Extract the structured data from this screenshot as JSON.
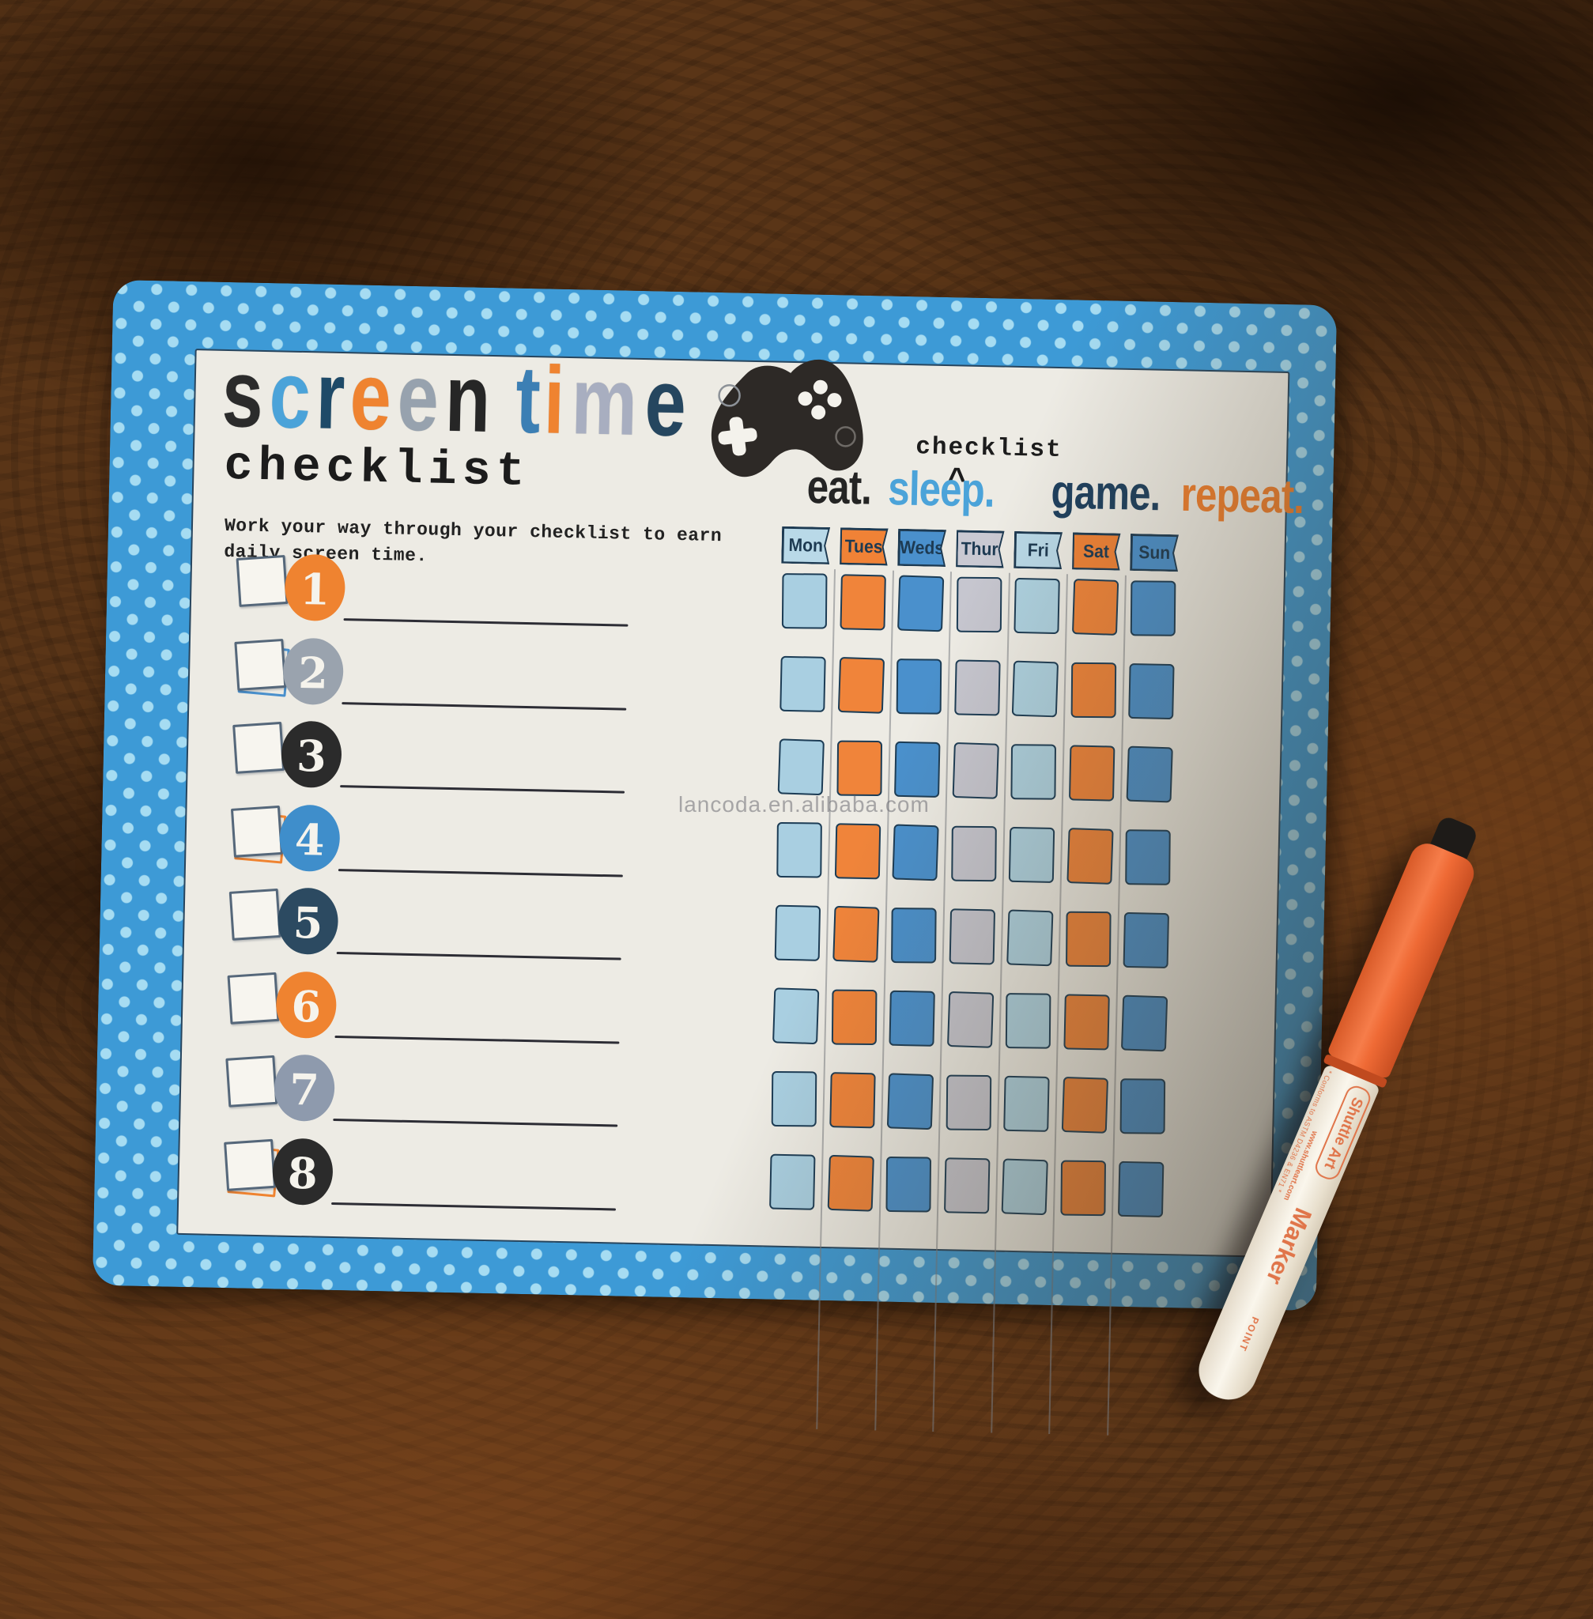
{
  "header": {
    "title_letters": [
      {
        "ch": "s",
        "color": "#2b2b2b"
      },
      {
        "ch": "c",
        "color": "#4ba3d9"
      },
      {
        "ch": "r",
        "color": "#1e4a68"
      },
      {
        "ch": "e",
        "color": "#ef8330"
      },
      {
        "ch": "e",
        "color": "#97a2ae"
      },
      {
        "ch": "n",
        "color": "#262626"
      },
      {
        "ch": " ",
        "color": ""
      },
      {
        "ch": "t",
        "color": "#3c7fb4"
      },
      {
        "ch": "i",
        "color": "#ef8330"
      },
      {
        "ch": "m",
        "color": "#a8aec0"
      },
      {
        "ch": "e",
        "color": "#25465f"
      }
    ],
    "subtitle": "checklist",
    "description_line1": "Work your way through your checklist to earn",
    "description_line2": "daily screen time."
  },
  "tagline": {
    "insert_word": "checklist",
    "caret": "^",
    "words": [
      {
        "text": "eat.",
        "color": "#242424"
      },
      {
        "text": "sleep.",
        "color": "#4ba3d9"
      },
      {
        "text": "game.",
        "color": "#1d3f5e"
      },
      {
        "text": "repeat.",
        "color": "#ef7f2e"
      }
    ]
  },
  "week": {
    "days": [
      {
        "label": "Mon",
        "color": "#b9d9e8"
      },
      {
        "label": "Tues",
        "color": "#f08236"
      },
      {
        "label": "Weds",
        "color": "#4a90cc"
      },
      {
        "label": "Thur",
        "color": "#c9c9d2"
      },
      {
        "label": "Fri",
        "color": "#b9d9e8"
      },
      {
        "label": "Sat",
        "color": "#f08236"
      },
      {
        "label": "Sun",
        "color": "#4a90cc"
      }
    ],
    "grid_rows": 8,
    "cell_colors": [
      "#a9cfe1",
      "#f0843a",
      "#4a90cc",
      "#c6c6cf",
      "#aed2e1",
      "#f0843a",
      "#4a90cc"
    ]
  },
  "checklist": {
    "rows": [
      {
        "num": "1",
        "circle": "#ef8330",
        "accent": ""
      },
      {
        "num": "2",
        "circle": "#9aa3ae",
        "accent": "#4a90cc"
      },
      {
        "num": "3",
        "circle": "#2b2b2b",
        "accent": ""
      },
      {
        "num": "4",
        "circle": "#3f8ecb",
        "accent": "#ef8330"
      },
      {
        "num": "5",
        "circle": "#2c4a61",
        "accent": ""
      },
      {
        "num": "6",
        "circle": "#ef8330",
        "accent": ""
      },
      {
        "num": "7",
        "circle": "#8e9aad",
        "accent": ""
      },
      {
        "num": "8",
        "circle": "#2b2b2b",
        "accent": "#ef8330"
      }
    ]
  },
  "watermark": "lancoda.en.alibaba.com",
  "marker_pen": {
    "badge": "Shuttle Art",
    "brand": "Marker",
    "point": "POINT",
    "small_print": "* Conforms to ASTM D4236 & EN71 *",
    "website": "www.shuttleart.com"
  }
}
